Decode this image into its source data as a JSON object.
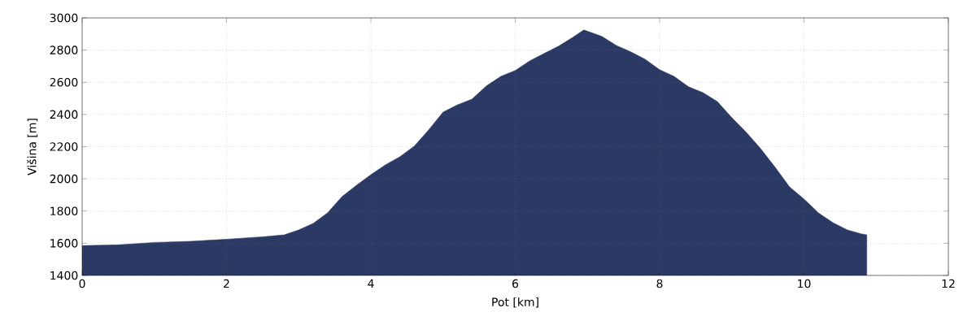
{
  "chart_data": {
    "type": "area",
    "xlabel": "Pot [km]",
    "ylabel": "Višina [m]",
    "color": "#2b3a64",
    "xlim": [
      0,
      12
    ],
    "ylim": [
      1400,
      3000
    ],
    "xticks": [
      0,
      2,
      4,
      6,
      8,
      10,
      12
    ],
    "yticks": [
      1400,
      1600,
      1800,
      2000,
      2200,
      2400,
      2600,
      2800,
      3000
    ],
    "grid": true,
    "x": [
      0,
      0.5,
      1,
      1.5,
      2,
      2.5,
      2.8,
      3.0,
      3.2,
      3.4,
      3.6,
      3.8,
      4.0,
      4.2,
      4.4,
      4.6,
      4.8,
      5.0,
      5.2,
      5.4,
      5.6,
      5.8,
      6.0,
      6.2,
      6.4,
      6.6,
      6.8,
      6.95,
      7.2,
      7.4,
      7.6,
      7.8,
      8.0,
      8.2,
      8.4,
      8.6,
      8.8,
      9.0,
      9.2,
      9.4,
      9.6,
      9.8,
      10.0,
      10.2,
      10.4,
      10.6,
      10.8,
      10.87
    ],
    "values": [
      1585,
      1590,
      1605,
      1612,
      1625,
      1640,
      1652,
      1683,
      1723,
      1789,
      1890,
      1960,
      2026,
      2087,
      2137,
      2203,
      2304,
      2415,
      2460,
      2495,
      2577,
      2637,
      2673,
      2733,
      2779,
      2824,
      2880,
      2925,
      2885,
      2829,
      2789,
      2743,
      2678,
      2637,
      2572,
      2536,
      2480,
      2380,
      2289,
      2188,
      2072,
      1950,
      1875,
      1789,
      1728,
      1683,
      1658,
      1652
    ]
  }
}
